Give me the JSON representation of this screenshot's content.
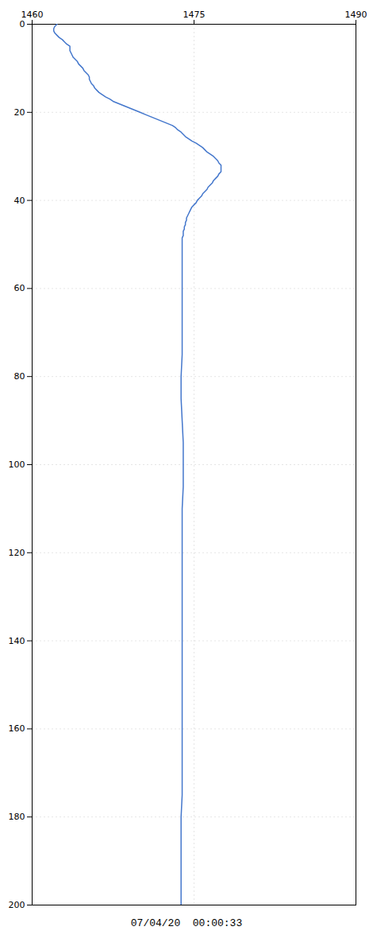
{
  "chart_data": {
    "type": "line",
    "xlabel": "07/04/20  00:00:33",
    "color": "#4477cc",
    "grid": true,
    "xlim": [
      1460,
      1490
    ],
    "ylim": [
      200,
      0
    ],
    "xticks": [
      1460,
      1475,
      1490
    ],
    "yticks": [
      0,
      20,
      40,
      60,
      80,
      100,
      120,
      140,
      160,
      180,
      200
    ],
    "x": [
      1462.3,
      1462.1,
      1462.0,
      1462.0,
      1462.1,
      1462.3,
      1462.5,
      1462.8,
      1463.0,
      1463.2,
      1463.5,
      1463.5,
      1463.5,
      1463.6,
      1463.7,
      1463.8,
      1464.0,
      1464.2,
      1464.3,
      1464.5,
      1464.7,
      1464.8,
      1465.0,
      1465.2,
      1465.3,
      1465.3,
      1465.4,
      1465.5,
      1465.7,
      1465.8,
      1466.0,
      1466.2,
      1466.5,
      1466.8,
      1467.2,
      1467.5,
      1468.0,
      1468.5,
      1469.0,
      1469.5,
      1470.0,
      1470.5,
      1471.0,
      1471.5,
      1472.0,
      1472.5,
      1473.0,
      1473.3,
      1473.5,
      1473.8,
      1474.0,
      1474.2,
      1474.5,
      1474.8,
      1475.2,
      1475.5,
      1475.8,
      1476.0,
      1476.2,
      1476.5,
      1476.8,
      1477.0,
      1477.2,
      1477.3,
      1477.5,
      1477.5,
      1477.5,
      1477.5,
      1477.3,
      1477.2,
      1477.0,
      1476.8,
      1476.7,
      1476.5,
      1476.3,
      1476.2,
      1476.0,
      1475.8,
      1475.7,
      1475.5,
      1475.3,
      1475.2,
      1475.0,
      1474.8,
      1474.7,
      1474.6,
      1474.5,
      1474.4,
      1474.3,
      1474.3,
      1474.2,
      1474.2,
      1474.1,
      1474.1,
      1474.0,
      1474.0,
      1474.0,
      1473.9,
      1473.9,
      1473.9,
      1473.9,
      1473.9,
      1473.9,
      1473.9,
      1473.9,
      1473.9,
      1473.8,
      1473.8,
      1473.9,
      1474.0,
      1474.0,
      1474.0,
      1473.9,
      1473.9,
      1473.9,
      1473.9,
      1473.9,
      1473.9,
      1473.9,
      1473.9,
      1473.9,
      1473.9,
      1473.9,
      1473.9,
      1473.9,
      1473.9,
      1473.8,
      1473.8,
      1473.8,
      1473.8,
      1473.8
    ],
    "values": [
      0,
      0.5,
      1,
      1.5,
      2,
      2.5,
      3,
      3.5,
      4,
      4.5,
      5,
      5.5,
      6,
      6.5,
      7,
      7.5,
      8,
      8.5,
      9,
      9.5,
      10,
      10.5,
      11,
      11.5,
      12,
      12.5,
      13,
      13.5,
      14,
      14.5,
      15,
      15.5,
      16,
      16.5,
      17,
      17.5,
      18,
      18.5,
      19,
      19.5,
      20,
      20.5,
      21,
      21.5,
      22,
      22.5,
      23,
      23.5,
      24,
      24.5,
      25,
      25.5,
      26,
      26.5,
      27,
      27.5,
      28,
      28.5,
      29,
      29.5,
      30,
      30.5,
      31,
      31.5,
      32,
      32.5,
      33,
      33.5,
      34,
      34.5,
      35,
      35.5,
      36,
      36.5,
      37,
      37.5,
      38,
      38.5,
      39,
      39.5,
      40,
      40.5,
      41,
      41.5,
      42,
      42.5,
      43,
      43.5,
      44,
      44.5,
      45,
      45.5,
      46,
      46.5,
      47,
      47.5,
      48,
      48.5,
      49,
      49.5,
      50,
      55,
      60,
      65,
      70,
      75,
      80,
      85,
      90,
      95,
      100,
      105,
      110,
      115,
      120,
      125,
      130,
      135,
      140,
      145,
      150,
      155,
      160,
      165,
      170,
      175,
      180,
      185,
      190,
      195,
      200
    ]
  }
}
